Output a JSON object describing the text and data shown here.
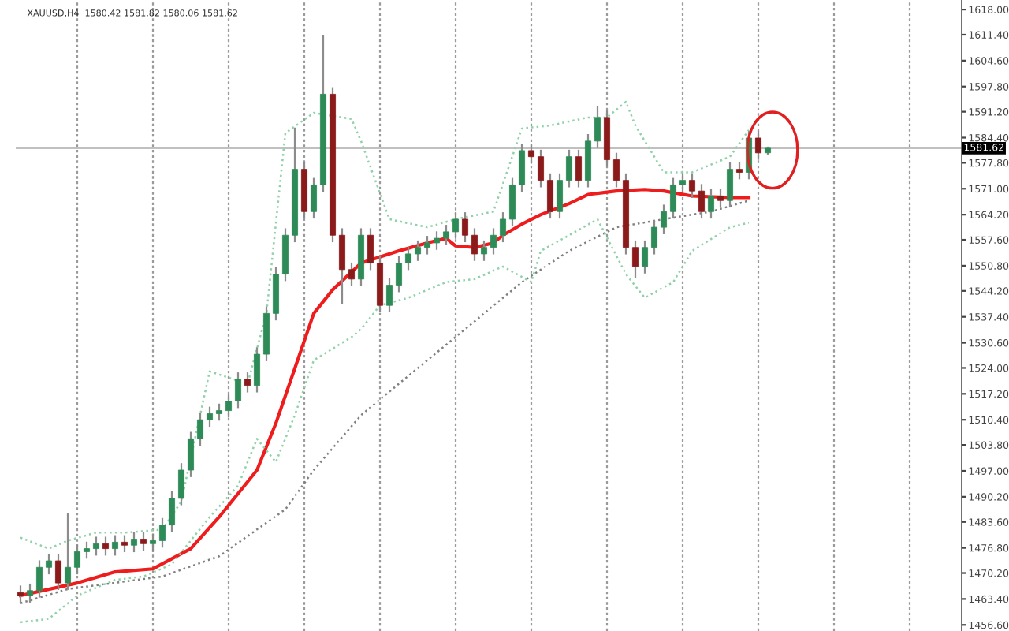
{
  "chart_data": {
    "type": "candlestick",
    "title": "XAUUSD,H4  1580.42 1581.82 1580.06 1581.62",
    "categories": [
      null,
      null,
      null,
      null,
      null,
      null,
      null,
      null,
      null,
      null,
      null,
      null,
      null,
      null,
      null,
      null,
      null,
      null,
      null,
      null,
      null,
      null,
      null,
      null,
      null,
      null,
      null,
      null,
      null,
      null,
      null,
      null,
      null,
      null,
      null,
      null,
      null,
      null,
      null,
      null,
      null,
      null,
      null,
      null,
      null,
      null,
      null,
      null,
      null,
      null,
      null,
      null,
      null,
      null,
      null,
      null,
      null,
      null,
      null,
      null,
      null,
      null,
      null,
      null,
      null,
      null,
      null,
      null,
      null,
      null,
      null,
      null,
      null,
      null,
      null,
      null,
      null,
      null,
      null,
      null,
      null,
      null,
      null,
      null,
      null,
      null,
      null,
      null,
      null,
      null,
      null,
      null,
      null,
      null,
      null,
      null,
      null,
      null,
      null,
      null
    ],
    "ohlc": [
      [
        1465.1,
        1466.7,
        1462.7,
        1464.3
      ],
      [
        1464.3,
        1467.2,
        1462.7,
        1465.6
      ],
      [
        1465.6,
        1473.3,
        1464.0,
        1471.7
      ],
      [
        1471.7,
        1475.0,
        1470.1,
        1473.4
      ],
      [
        1473.4,
        1475.0,
        1466.0,
        1467.6
      ],
      [
        1467.6,
        1485.7,
        1466.0,
        1471.7
      ],
      [
        1471.7,
        1477.4,
        1470.1,
        1475.8
      ],
      [
        1475.8,
        1478.2,
        1474.2,
        1476.6
      ],
      [
        1476.6,
        1479.5,
        1475.0,
        1477.9
      ],
      [
        1477.9,
        1479.5,
        1475.0,
        1476.6
      ],
      [
        1476.6,
        1479.9,
        1475.0,
        1478.3
      ],
      [
        1478.3,
        1479.9,
        1475.9,
        1477.5
      ],
      [
        1477.5,
        1480.7,
        1475.9,
        1479.1
      ],
      [
        1479.1,
        1480.7,
        1476.3,
        1477.9
      ],
      [
        1477.9,
        1480.3,
        1476.3,
        1478.7
      ],
      [
        1478.7,
        1484.4,
        1477.1,
        1482.8
      ],
      [
        1482.8,
        1491.4,
        1481.2,
        1489.8
      ],
      [
        1489.8,
        1498.8,
        1488.2,
        1497.2
      ],
      [
        1497.2,
        1507.0,
        1495.6,
        1505.4
      ],
      [
        1505.4,
        1512.0,
        1503.8,
        1510.4
      ],
      [
        1510.4,
        1513.6,
        1508.8,
        1512.0
      ],
      [
        1512.0,
        1514.4,
        1510.4,
        1512.8
      ],
      [
        1512.8,
        1516.9,
        1511.2,
        1515.3
      ],
      [
        1515.3,
        1522.6,
        1513.7,
        1521.0
      ],
      [
        1521.0,
        1522.6,
        1517.8,
        1519.4
      ],
      [
        1519.4,
        1529.2,
        1517.8,
        1527.6
      ],
      [
        1527.6,
        1539.9,
        1526.0,
        1538.3
      ],
      [
        1538.3,
        1550.2,
        1536.7,
        1548.6
      ],
      [
        1548.6,
        1560.4,
        1547.0,
        1558.8
      ],
      [
        1558.8,
        1586.8,
        1557.2,
        1576.1
      ],
      [
        1576.1,
        1577.7,
        1563.4,
        1565.0
      ],
      [
        1565.0,
        1573.6,
        1563.4,
        1572.0
      ],
      [
        1572.0,
        1611.0,
        1570.4,
        1595.8
      ],
      [
        1595.8,
        1597.4,
        1557.2,
        1558.8
      ],
      [
        1558.8,
        1560.4,
        1541.0,
        1549.8
      ],
      [
        1549.8,
        1551.4,
        1545.7,
        1547.3
      ],
      [
        1547.3,
        1560.4,
        1545.7,
        1558.8
      ],
      [
        1558.8,
        1560.4,
        1549.9,
        1551.5
      ],
      [
        1551.5,
        1553.1,
        1538.8,
        1540.4
      ],
      [
        1540.4,
        1547.3,
        1538.8,
        1545.7
      ],
      [
        1545.7,
        1553.1,
        1544.1,
        1551.5
      ],
      [
        1551.5,
        1555.5,
        1549.9,
        1553.9
      ],
      [
        1553.9,
        1557.2,
        1552.3,
        1555.6
      ],
      [
        1555.6,
        1558.4,
        1554.0,
        1556.8
      ],
      [
        1556.8,
        1559.6,
        1555.2,
        1558.0
      ],
      [
        1558.0,
        1561.3,
        1556.4,
        1559.7
      ],
      [
        1559.7,
        1564.6,
        1558.1,
        1563.0
      ],
      [
        1563.0,
        1564.6,
        1557.2,
        1558.8
      ],
      [
        1558.8,
        1560.4,
        1552.3,
        1553.9
      ],
      [
        1553.9,
        1557.2,
        1552.3,
        1555.6
      ],
      [
        1555.6,
        1560.4,
        1554.0,
        1558.8
      ],
      [
        1558.8,
        1564.6,
        1557.2,
        1563.0
      ],
      [
        1563.0,
        1573.6,
        1561.4,
        1572.0
      ],
      [
        1572.0,
        1582.6,
        1570.4,
        1581.0
      ],
      [
        1581.0,
        1582.6,
        1577.8,
        1579.4
      ],
      [
        1579.4,
        1581.0,
        1571.6,
        1573.2
      ],
      [
        1573.2,
        1574.8,
        1563.4,
        1565.0
      ],
      [
        1565.0,
        1574.8,
        1563.4,
        1573.2
      ],
      [
        1573.2,
        1581.0,
        1571.6,
        1579.4
      ],
      [
        1579.4,
        1581.0,
        1571.6,
        1573.2
      ],
      [
        1573.2,
        1585.1,
        1571.6,
        1583.5
      ],
      [
        1583.5,
        1592.5,
        1581.9,
        1589.7
      ],
      [
        1589.7,
        1591.3,
        1577.0,
        1578.6
      ],
      [
        1578.6,
        1580.2,
        1571.6,
        1573.2
      ],
      [
        1573.2,
        1574.8,
        1554.0,
        1555.6
      ],
      [
        1555.6,
        1557.2,
        1547.7,
        1550.6
      ],
      [
        1550.6,
        1557.2,
        1549.0,
        1555.6
      ],
      [
        1555.6,
        1562.5,
        1554.0,
        1560.9
      ],
      [
        1560.9,
        1566.6,
        1559.3,
        1565.0
      ],
      [
        1565.0,
        1573.6,
        1563.4,
        1572.0
      ],
      [
        1572.0,
        1574.8,
        1570.4,
        1573.2
      ],
      [
        1573.2,
        1574.8,
        1568.8,
        1570.4
      ],
      [
        1570.4,
        1572.0,
        1563.4,
        1565.0
      ],
      [
        1565.0,
        1570.7,
        1563.4,
        1569.1
      ],
      [
        1569.1,
        1570.7,
        1566.3,
        1567.9
      ],
      [
        1567.9,
        1577.7,
        1566.3,
        1576.1
      ],
      [
        1576.1,
        1577.7,
        1573.7,
        1575.3
      ],
      [
        1575.3,
        1585.9,
        1573.7,
        1584.3
      ],
      [
        1584.3,
        1585.9,
        1578.8,
        1580.4
      ],
      [
        1580.42,
        1581.82,
        1580.06,
        1581.62
      ],
      null,
      null,
      null,
      null,
      null,
      null,
      null,
      null,
      null,
      null,
      null,
      null,
      null,
      null,
      null,
      null,
      null,
      null,
      null,
      null
    ],
    "series": [
      {
        "type": "line",
        "color": "#ee1c1c",
        "line_style": "solid",
        "values": [
          1464.3,
          null,
          null,
          null,
          null,
          null,
          1467.6,
          null,
          null,
          null,
          1470.5,
          null,
          null,
          null,
          1471.3,
          null,
          null,
          null,
          1476.6,
          null,
          null,
          1484.9,
          null,
          null,
          null,
          1497.2,
          null,
          1509.5,
          null,
          1523.9,
          null,
          1538.3,
          null,
          1544.5,
          null,
          null,
          1551.5,
          null,
          null,
          null,
          1554.7,
          null,
          null,
          1556.8,
          null,
          1558.0,
          1556.0,
          null,
          1555.6,
          null,
          1556.8,
          1558.8,
          null,
          1561.7,
          null,
          1564.2,
          null,
          null,
          1567.1,
          null,
          1569.5,
          null,
          null,
          1570.4,
          null,
          null,
          1570.8,
          null,
          1570.4,
          null,
          null,
          1569.1,
          null,
          null,
          null,
          1568.7,
          null,
          1568.7,
          null,
          null,
          null,
          null,
          null,
          null,
          null,
          null,
          null,
          null,
          null,
          null,
          null,
          null,
          null,
          null,
          null,
          null,
          null,
          null,
          null,
          null
        ]
      },
      {
        "type": "line",
        "color": "#808080",
        "line_style": "dotted",
        "values": [
          1462.3,
          null,
          null,
          null,
          null,
          1466.0,
          null,
          null,
          null,
          null,
          null,
          null,
          null,
          null,
          null,
          1469.3,
          null,
          null,
          null,
          null,
          null,
          1474.6,
          null,
          null,
          null,
          null,
          null,
          null,
          1486.9,
          null,
          null,
          1497.2,
          null,
          null,
          null,
          null,
          1511.6,
          null,
          null,
          null,
          null,
          1521.9,
          null,
          null,
          null,
          null,
          null,
          null,
          1536.2,
          null,
          null,
          null,
          null,
          1546.5,
          null,
          null,
          null,
          null,
          1554.7,
          null,
          null,
          null,
          null,
          1560.9,
          null,
          null,
          null,
          null,
          1563.0,
          null,
          null,
          null,
          null,
          1565.0,
          null,
          null,
          null,
          1567.9,
          null,
          null,
          null,
          null,
          null,
          null,
          null,
          null,
          null,
          null,
          null,
          null,
          null,
          null,
          null,
          null,
          null,
          null,
          null,
          null,
          null,
          null
        ]
      },
      {
        "type": "line",
        "color": "#8fd1a8",
        "line_style": "dotted",
        "values": [
          1479.5,
          null,
          null,
          1476.6,
          null,
          1478.7,
          null,
          null,
          1480.8,
          null,
          null,
          1480.8,
          null,
          null,
          null,
          1481.6,
          null,
          1489.0,
          null,
          null,
          1523.1,
          null,
          null,
          null,
          1519.8,
          null,
          1538.3,
          null,
          1585.6,
          null,
          null,
          1590.9,
          null,
          null,
          null,
          1589.3,
          1583.5,
          null,
          null,
          1563.0,
          null,
          null,
          null,
          1560.9,
          null,
          null,
          1563.0,
          null,
          null,
          null,
          1565.0,
          null,
          null,
          1586.8,
          null,
          null,
          1587.6,
          null,
          null,
          null,
          1589.7,
          null,
          1589.7,
          null,
          1593.8,
          1587.6,
          null,
          null,
          1575.3,
          null,
          null,
          1575.3,
          null,
          null,
          null,
          1579.4,
          null,
          1586.4,
          null,
          null,
          null,
          null,
          null,
          null,
          null,
          null,
          null,
          null,
          null,
          null,
          null,
          null,
          null,
          null,
          null,
          null,
          null,
          null,
          null,
          null
        ]
      },
      {
        "type": "line",
        "color": "#8fd1a8",
        "line_style": "dotted",
        "values": [
          1457.3,
          null,
          null,
          1458.2,
          null,
          null,
          1464.3,
          null,
          null,
          null,
          1468.4,
          null,
          null,
          1469.3,
          null,
          null,
          1472.5,
          null,
          null,
          null,
          1484.9,
          null,
          null,
          1493.1,
          null,
          1505.4,
          null,
          1499.3,
          null,
          1511.6,
          null,
          1526.0,
          null,
          null,
          null,
          1532.1,
          1534.2,
          null,
          1540.4,
          null,
          null,
          1542.4,
          null,
          null,
          null,
          1546.5,
          null,
          null,
          1547.3,
          null,
          null,
          1550.6,
          null,
          null,
          1546.5,
          1554.7,
          null,
          null,
          1558.8,
          null,
          null,
          1563.0,
          null,
          null,
          1548.6,
          null,
          1542.4,
          null,
          null,
          1546.5,
          null,
          1554.7,
          null,
          null,
          null,
          1560.9,
          null,
          1562.1,
          null,
          null,
          null,
          null,
          null,
          null,
          null,
          null,
          null,
          null,
          null,
          null,
          null,
          null,
          null,
          null,
          null,
          null,
          null,
          null,
          null,
          null
        ]
      }
    ],
    "ylim": [
      1455.0,
      1620.5
    ],
    "yticks": [
      {
        "value": 1618.0,
        "label": "1618.00"
      },
      {
        "value": 1611.4,
        "label": "1611.40"
      },
      {
        "value": 1604.6,
        "label": "1604.60"
      },
      {
        "value": 1597.8,
        "label": "1597.80"
      },
      {
        "value": 1591.2,
        "label": "1591.20"
      },
      {
        "value": 1584.4,
        "label": "1584.40"
      },
      {
        "value": 1577.8,
        "label": "1577.80"
      },
      {
        "value": 1571.0,
        "label": "1571.00"
      },
      {
        "value": 1564.2,
        "label": "1564.20"
      },
      {
        "value": 1557.6,
        "label": "1557.60"
      },
      {
        "value": 1550.8,
        "label": "1550.80"
      },
      {
        "value": 1544.2,
        "label": "1544.20"
      },
      {
        "value": 1537.4,
        "label": "1537.40"
      },
      {
        "value": 1530.6,
        "label": "1530.60"
      },
      {
        "value": 1524.0,
        "label": "1524.00"
      },
      {
        "value": 1517.2,
        "label": "1517.20"
      },
      {
        "value": 1510.4,
        "label": "1510.40"
      },
      {
        "value": 1503.8,
        "label": "1503.80"
      },
      {
        "value": 1497.0,
        "label": "1497.00"
      },
      {
        "value": 1490.2,
        "label": "1490.20"
      },
      {
        "value": 1483.6,
        "label": "1483.60"
      },
      {
        "value": 1476.8,
        "label": "1476.80"
      },
      {
        "value": 1470.2,
        "label": "1470.20"
      },
      {
        "value": 1463.4,
        "label": "1463.40"
      },
      {
        "value": 1456.6,
        "label": "1456.60"
      }
    ],
    "ref_lines": [
      {
        "axis": "y",
        "value": 1581.62,
        "label": "1581.62",
        "color": "#c0c0c0"
      }
    ],
    "tick_labels": "y",
    "grid": "x"
  }
}
